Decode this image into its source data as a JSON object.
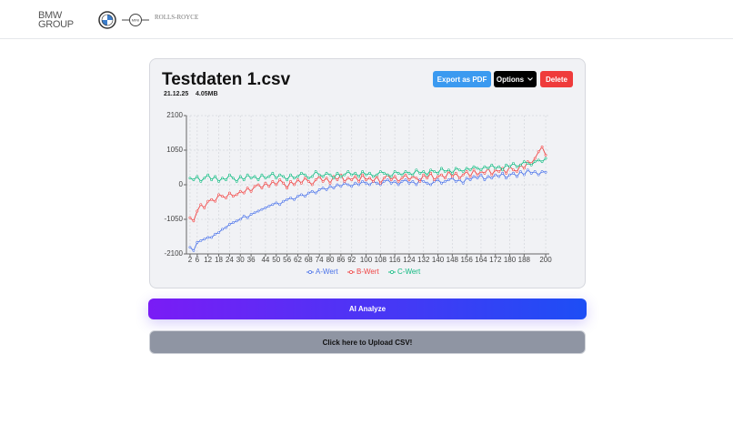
{
  "header": {
    "brand": [
      "BMW",
      "GROUP"
    ],
    "logos": [
      "MINI",
      "ROLLS-ROYCE"
    ]
  },
  "card": {
    "title": "Testdaten 1.csv",
    "date": "21.12.25",
    "size": "4.05MB",
    "buttons": {
      "export": "Export as PDF",
      "options": "Options",
      "delete": "Delete"
    }
  },
  "chart_data": {
    "type": "line",
    "x": [
      2,
      4,
      6,
      8,
      10,
      12,
      14,
      16,
      18,
      20,
      22,
      24,
      26,
      28,
      30,
      32,
      34,
      36,
      38,
      40,
      42,
      44,
      46,
      48,
      50,
      52,
      54,
      56,
      58,
      60,
      62,
      64,
      66,
      68,
      70,
      72,
      74,
      76,
      78,
      80,
      82,
      84,
      86,
      88,
      90,
      92,
      94,
      96,
      98,
      100,
      102,
      104,
      106,
      108,
      110,
      112,
      114,
      116,
      118,
      120,
      122,
      124,
      126,
      128,
      130,
      132,
      134,
      136,
      138,
      140,
      142,
      144,
      146,
      148,
      150,
      152,
      154,
      156,
      158,
      160,
      162,
      164,
      166,
      168,
      170,
      172,
      174,
      176,
      178,
      180,
      182,
      184,
      186,
      188,
      190,
      192,
      194,
      196,
      198,
      200
    ],
    "series": [
      {
        "name": "A-Wert",
        "color": "#4a72e8",
        "values": [
          -1900,
          -2000,
          -1750,
          -1700,
          -1650,
          -1600,
          -1600,
          -1500,
          -1450,
          -1350,
          -1300,
          -1200,
          -1150,
          -1100,
          -1050,
          -950,
          -1000,
          -900,
          -850,
          -800,
          -750,
          -700,
          -650,
          -600,
          -550,
          -600,
          -500,
          -450,
          -400,
          -450,
          -350,
          -300,
          -350,
          -250,
          -200,
          -250,
          -150,
          -100,
          -150,
          -50,
          -100,
          0,
          -50,
          50,
          0,
          -50,
          50,
          0,
          100,
          50,
          0,
          100,
          50,
          0,
          100,
          150,
          50,
          100,
          0,
          100,
          150,
          50,
          100,
          0,
          150,
          100,
          50,
          0,
          100,
          150,
          50,
          100,
          150,
          200,
          100,
          150,
          50,
          200,
          150,
          250,
          200,
          300,
          150,
          250,
          200,
          300,
          250,
          350,
          200,
          300,
          350,
          250,
          400,
          300,
          450,
          350,
          400,
          300,
          400,
          380
        ]
      },
      {
        "name": "B-Wert",
        "color": "#ef4444",
        "values": [
          -1000,
          -1100,
          -800,
          -600,
          -700,
          -500,
          -450,
          -500,
          -300,
          -350,
          -400,
          -250,
          -350,
          -300,
          -200,
          -250,
          -100,
          -200,
          -50,
          0,
          -100,
          50,
          -50,
          100,
          0,
          150,
          50,
          -100,
          100,
          0,
          150,
          50,
          200,
          100,
          0,
          150,
          250,
          100,
          200,
          50,
          250,
          150,
          300,
          100,
          200,
          150,
          250,
          100,
          300,
          150,
          200,
          100,
          250,
          50,
          200,
          300,
          150,
          250,
          100,
          200,
          300,
          150,
          250,
          200,
          100,
          300,
          200,
          350,
          150,
          250,
          300,
          200,
          400,
          250,
          350,
          200,
          300,
          400,
          250,
          450,
          300,
          400,
          350,
          500,
          300,
          450,
          400,
          500,
          350,
          550,
          450,
          400,
          600,
          500,
          700,
          650,
          800,
          1000,
          1150,
          900
        ]
      },
      {
        "name": "C-Wert",
        "color": "#10b981",
        "values": [
          200,
          150,
          250,
          100,
          200,
          300,
          150,
          250,
          100,
          200,
          150,
          300,
          200,
          100,
          250,
          150,
          300,
          200,
          250,
          150,
          300,
          200,
          250,
          350,
          200,
          300,
          250,
          150,
          300,
          200,
          250,
          350,
          300,
          200,
          250,
          400,
          300,
          250,
          350,
          300,
          200,
          350,
          250,
          300,
          400,
          300,
          350,
          250,
          400,
          300,
          350,
          250,
          300,
          400,
          350,
          300,
          250,
          400,
          350,
          300,
          400,
          350,
          300,
          450,
          350,
          400,
          300,
          450,
          400,
          350,
          500,
          400,
          450,
          350,
          500,
          450,
          400,
          500,
          450,
          550,
          500,
          450,
          550,
          500,
          600,
          500,
          550,
          450,
          600,
          550,
          650,
          550,
          600,
          700,
          650,
          600,
          700,
          750,
          700,
          800
        ]
      }
    ],
    "xlim": [
      0,
      202
    ],
    "ylim": [
      -2100,
      2100
    ],
    "xticks": [
      2,
      6,
      12,
      18,
      24,
      30,
      36,
      44,
      50,
      56,
      62,
      68,
      74,
      80,
      86,
      92,
      100,
      108,
      116,
      124,
      132,
      140,
      148,
      156,
      164,
      172,
      180,
      188,
      200
    ],
    "yticks": [
      -2100,
      -1050,
      0,
      1050,
      2100
    ],
    "grid": true,
    "legend": "bottom"
  },
  "actions": {
    "analyze": "AI Analyze",
    "upload": "Click here to Upload CSV!"
  }
}
